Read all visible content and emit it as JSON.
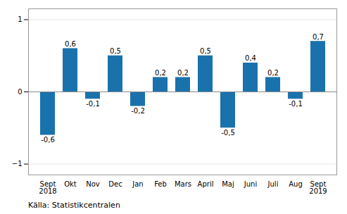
{
  "chart_data": {
    "type": "bar",
    "categories": [
      "Sept\n2018",
      "Okt",
      "Nov",
      "Dec",
      "Jan",
      "Feb",
      "Mars",
      "April",
      "Maj",
      "Juni",
      "Juli",
      "Aug",
      "Sept\n2019"
    ],
    "values": [
      -0.6,
      0.6,
      -0.1,
      0.5,
      -0.2,
      0.2,
      0.2,
      0.5,
      -0.5,
      0.4,
      0.2,
      -0.1,
      0.7
    ],
    "value_labels": [
      "-0,6",
      "0,6",
      "-0,1",
      "0,5",
      "-0,2",
      "0,2",
      "0,2",
      "0,5",
      "-0,5",
      "0,4",
      "0,2",
      "-0,1",
      "0,7"
    ],
    "data_labels": true,
    "color": "#1a72ad",
    "ylim": [
      -1.15,
      1.15
    ],
    "yticks": [
      -1,
      0,
      1
    ],
    "grid": true,
    "annotations": [
      {
        "text": "Källa: Statistikcentralen"
      }
    ]
  }
}
